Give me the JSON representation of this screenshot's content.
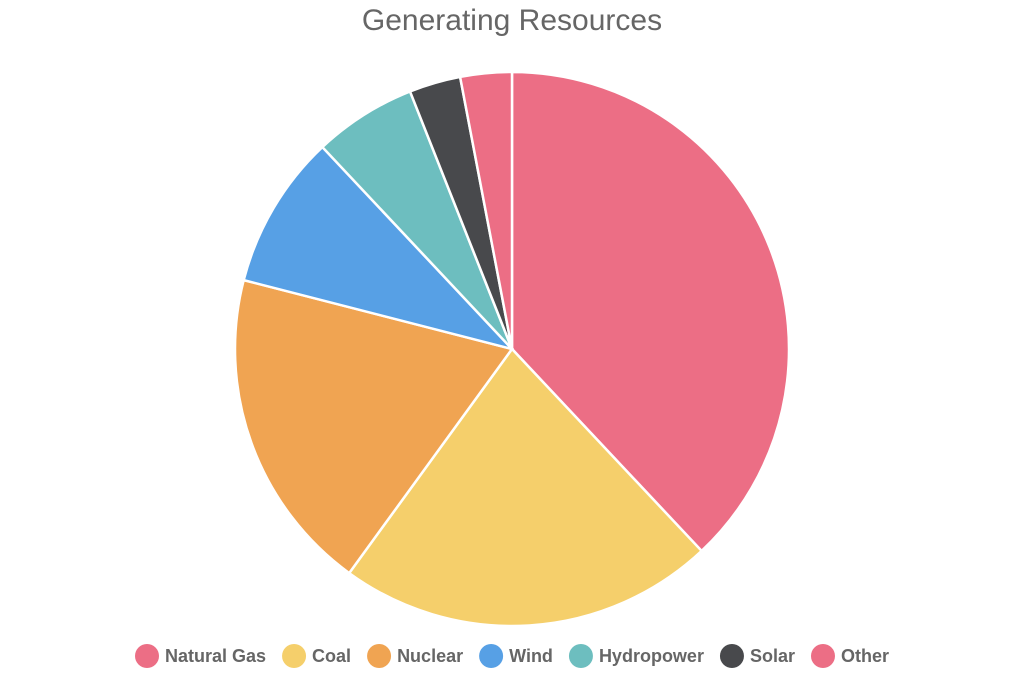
{
  "chart_data": {
    "type": "pie",
    "title": "Generating Resources",
    "categories": [
      "Natural Gas",
      "Coal",
      "Nuclear",
      "Wind",
      "Hydropower",
      "Solar",
      "Other"
    ],
    "values": [
      38,
      22,
      19,
      9,
      6,
      3,
      3
    ],
    "colors": [
      "#ec6e85",
      "#f5cf6b",
      "#f0a452",
      "#57a0e5",
      "#6dbebf",
      "#48494c",
      "#ec6e85"
    ]
  }
}
